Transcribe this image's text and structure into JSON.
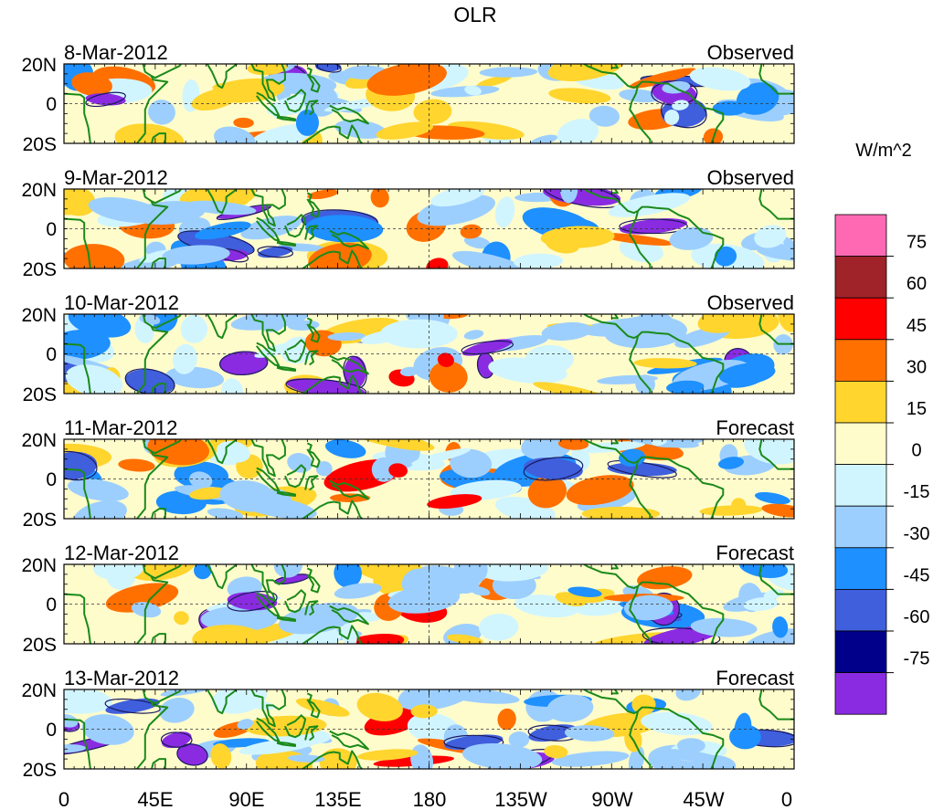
{
  "title": "OLR",
  "panels": [
    {
      "date": "8-Mar-2012",
      "kind": "Observed"
    },
    {
      "date": "9-Mar-2012",
      "kind": "Observed"
    },
    {
      "date": "10-Mar-2012",
      "kind": "Observed"
    },
    {
      "date": "11-Mar-2012",
      "kind": "Forecast"
    },
    {
      "date": "12-Mar-2012",
      "kind": "Forecast"
    },
    {
      "date": "13-Mar-2012",
      "kind": "Forecast"
    }
  ],
  "lat_labels": [
    "20N",
    "0",
    "20S"
  ],
  "lon_labels": [
    "0",
    "45E",
    "90E",
    "135E",
    "180",
    "135W",
    "90W",
    "45W",
    "0"
  ],
  "colorbar": {
    "unit": "W/m^2",
    "tick_labels": [
      "75",
      "60",
      "45",
      "30",
      "15",
      "0",
      "-15",
      "-30",
      "-45",
      "-60",
      "-75"
    ],
    "colors": [
      "#ff69b4",
      "#a0232a",
      "#ff0000",
      "#ff7000",
      "#ffd52e",
      "#fffccc",
      "#d1f5ff",
      "#9dcffe",
      "#1e90ff",
      "#3f5fdd",
      "#00008b",
      "#8a2be2"
    ]
  },
  "colors": {
    "coast": "#1a8a1a",
    "frame": "#000000",
    "contour": "#1a1a5e"
  }
}
